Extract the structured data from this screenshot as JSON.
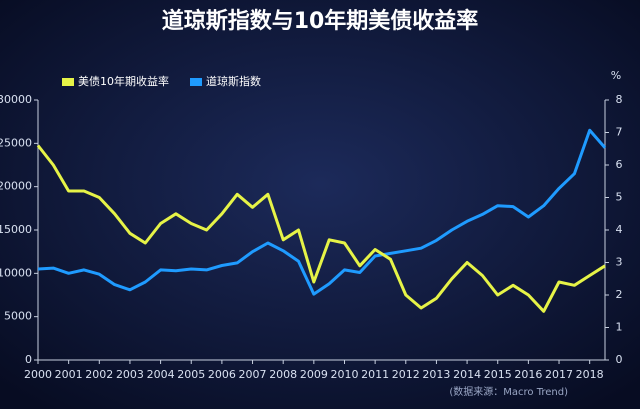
{
  "chart_data": {
    "type": "line",
    "title": "道琼斯指数与10年期美债收益率",
    "y2_unit": "%",
    "source": "(数据来源：Macro Trend)",
    "x": [
      2000,
      2000.5,
      2001,
      2001.5,
      2002,
      2002.5,
      2003,
      2003.5,
      2004,
      2004.5,
      2005,
      2005.5,
      2006,
      2006.5,
      2007,
      2007.5,
      2008,
      2008.5,
      2009,
      2009.5,
      2010,
      2010.5,
      2011,
      2011.5,
      2012,
      2012.5,
      2013,
      2013.5,
      2014,
      2014.5,
      2015,
      2015.5,
      2016,
      2016.5,
      2017,
      2017.5,
      2018,
      2018.5
    ],
    "xlim": [
      2000,
      2018.5
    ],
    "xticks": [
      2000,
      2001,
      2002,
      2003,
      2004,
      2005,
      2006,
      2007,
      2008,
      2009,
      2010,
      2011,
      2012,
      2013,
      2014,
      2015,
      2016,
      2017,
      2018
    ],
    "ylim": [
      0,
      30000
    ],
    "yticks": [
      0,
      5000,
      10000,
      15000,
      20000,
      25000,
      30000
    ],
    "y2lim": [
      0,
      8
    ],
    "y2ticks": [
      0,
      1,
      2,
      3,
      4,
      5,
      6,
      7,
      8
    ],
    "legend": "top-left",
    "series": [
      {
        "name": "美债10年期收益率",
        "color": "#e6f347",
        "axis": "y2",
        "values": [
          6.6,
          6.0,
          5.2,
          5.2,
          5.0,
          4.5,
          3.9,
          3.6,
          4.2,
          4.5,
          4.2,
          4.0,
          4.5,
          5.1,
          4.7,
          5.1,
          3.7,
          4.0,
          2.4,
          3.7,
          3.6,
          2.9,
          3.4,
          3.1,
          2.0,
          1.6,
          1.9,
          2.5,
          3.0,
          2.6,
          2.0,
          2.3,
          2.0,
          1.5,
          2.4,
          2.3,
          2.6,
          2.9
        ]
      },
      {
        "name": "道琼斯指数",
        "color": "#1f9bff",
        "values": [
          10500,
          10600,
          10000,
          10400,
          9900,
          8700,
          8100,
          9000,
          10400,
          10300,
          10500,
          10400,
          10900,
          11200,
          12500,
          13500,
          12600,
          11400,
          7600,
          8800,
          10400,
          10100,
          12000,
          12300,
          12600,
          12900,
          13800,
          15000,
          16000,
          16800,
          17800,
          17700,
          16500,
          17800,
          19800,
          21500,
          26500,
          24500
        ]
      }
    ]
  }
}
